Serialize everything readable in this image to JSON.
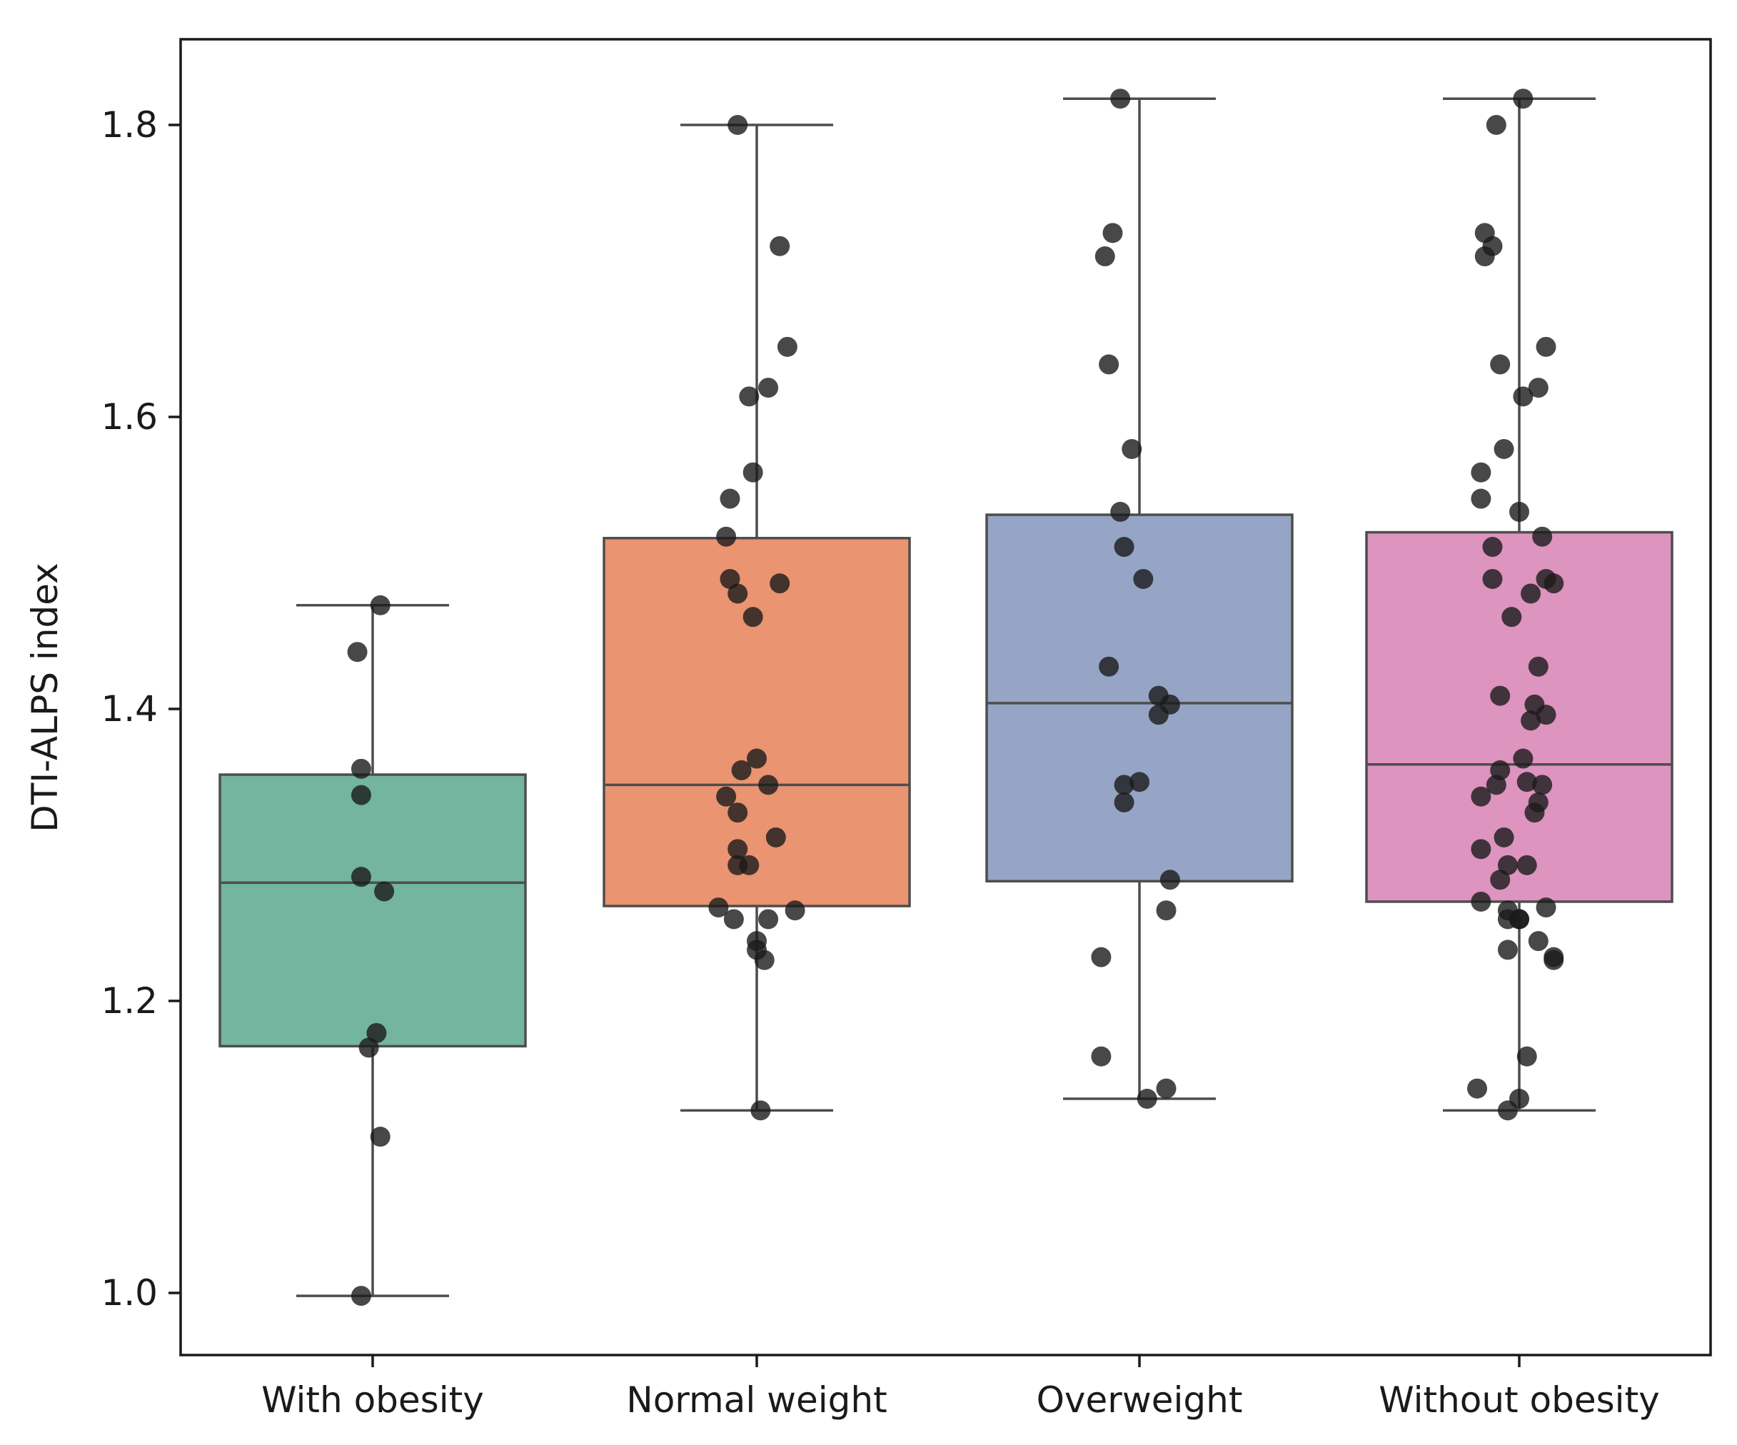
{
  "chart_data": {
    "type": "box",
    "title": "",
    "xlabel": "",
    "ylabel": "DTI-ALPS index",
    "ylim": [
      0.96,
      1.86
    ],
    "yticks": [
      "1.0",
      "1.2",
      "1.4",
      "1.6",
      "1.8"
    ],
    "categories": [
      "With obesity",
      "Normal weight",
      "Overweight",
      "Without obesity"
    ],
    "colors": [
      "#73b59f",
      "#ea9472",
      "#96a5c5",
      "#dd94bf"
    ],
    "boxes": [
      {
        "name": "With obesity",
        "whisker_low": 0.998,
        "q1": 1.169,
        "median": 1.281,
        "q3": 1.355,
        "whisker_high": 1.471
      },
      {
        "name": "Normal weight",
        "whisker_low": 1.125,
        "q1": 1.265,
        "median": 1.348,
        "q3": 1.517,
        "whisker_high": 1.8
      },
      {
        "name": "Overweight",
        "whisker_low": 1.133,
        "q1": 1.282,
        "median": 1.404,
        "q3": 1.533,
        "whisker_high": 1.818
      },
      {
        "name": "Without obesity",
        "whisker_low": 1.125,
        "q1": 1.268,
        "median": 1.362,
        "q3": 1.521,
        "whisker_high": 1.818
      }
    ],
    "points": [
      [
        [
          0.02,
          1.471
        ],
        [
          -0.04,
          1.439
        ],
        [
          -0.03,
          1.359
        ],
        [
          -0.03,
          1.341
        ],
        [
          -0.03,
          1.285
        ],
        [
          0.03,
          1.275
        ],
        [
          0.01,
          1.178
        ],
        [
          -0.01,
          1.168
        ],
        [
          0.02,
          1.107
        ],
        [
          -0.03,
          0.998
        ]
      ],
      [
        [
          -0.05,
          1.8
        ],
        [
          0.06,
          1.717
        ],
        [
          0.08,
          1.648
        ],
        [
          0.03,
          1.62
        ],
        [
          -0.02,
          1.614
        ],
        [
          -0.01,
          1.562
        ],
        [
          -0.07,
          1.544
        ],
        [
          -0.08,
          1.518
        ],
        [
          -0.07,
          1.489
        ],
        [
          0.06,
          1.486
        ],
        [
          -0.05,
          1.479
        ],
        [
          -0.01,
          1.463
        ],
        [
          -0.0,
          1.366
        ],
        [
          -0.04,
          1.358
        ],
        [
          0.03,
          1.348
        ],
        [
          -0.08,
          1.34
        ],
        [
          -0.05,
          1.329
        ],
        [
          0.05,
          1.312
        ],
        [
          -0.05,
          1.304
        ],
        [
          -0.05,
          1.293
        ],
        [
          -0.02,
          1.293
        ],
        [
          -0.1,
          1.264
        ],
        [
          0.1,
          1.262
        ],
        [
          -0.06,
          1.256
        ],
        [
          0.03,
          1.256
        ],
        [
          0.0,
          1.241
        ],
        [
          0.0,
          1.235
        ],
        [
          0.02,
          1.228
        ],
        [
          0.01,
          1.125
        ]
      ],
      [
        [
          -0.05,
          1.818
        ],
        [
          -0.07,
          1.726
        ],
        [
          -0.09,
          1.71
        ],
        [
          -0.08,
          1.636
        ],
        [
          -0.02,
          1.578
        ],
        [
          -0.05,
          1.535
        ],
        [
          -0.04,
          1.511
        ],
        [
          0.01,
          1.489
        ],
        [
          -0.08,
          1.429
        ],
        [
          0.05,
          1.409
        ],
        [
          0.08,
          1.403
        ],
        [
          0.05,
          1.396
        ],
        [
          0.0,
          1.35
        ],
        [
          -0.04,
          1.348
        ],
        [
          -0.04,
          1.336
        ],
        [
          0.08,
          1.283
        ],
        [
          0.07,
          1.262
        ],
        [
          -0.1,
          1.23
        ],
        [
          -0.1,
          1.162
        ],
        [
          0.07,
          1.14
        ],
        [
          0.02,
          1.133
        ]
      ],
      [
        [
          0.01,
          1.818
        ],
        [
          -0.06,
          1.8
        ],
        [
          -0.09,
          1.726
        ],
        [
          -0.07,
          1.717
        ],
        [
          -0.09,
          1.71
        ],
        [
          0.07,
          1.648
        ],
        [
          -0.05,
          1.636
        ],
        [
          0.05,
          1.62
        ],
        [
          0.01,
          1.614
        ],
        [
          -0.04,
          1.578
        ],
        [
          -0.1,
          1.562
        ],
        [
          -0.1,
          1.544
        ],
        [
          0.0,
          1.535
        ],
        [
          0.06,
          1.518
        ],
        [
          -0.07,
          1.511
        ],
        [
          0.07,
          1.489
        ],
        [
          -0.07,
          1.489
        ],
        [
          0.09,
          1.486
        ],
        [
          0.03,
          1.479
        ],
        [
          -0.02,
          1.463
        ],
        [
          0.05,
          1.429
        ],
        [
          -0.05,
          1.409
        ],
        [
          0.04,
          1.403
        ],
        [
          0.07,
          1.396
        ],
        [
          0.03,
          1.392
        ],
        [
          0.01,
          1.366
        ],
        [
          -0.05,
          1.358
        ],
        [
          0.02,
          1.35
        ],
        [
          -0.06,
          1.348
        ],
        [
          0.06,
          1.348
        ],
        [
          -0.1,
          1.34
        ],
        [
          0.05,
          1.336
        ],
        [
          0.04,
          1.329
        ],
        [
          -0.04,
          1.312
        ],
        [
          -0.1,
          1.304
        ],
        [
          -0.03,
          1.293
        ],
        [
          0.02,
          1.293
        ],
        [
          -0.05,
          1.283
        ],
        [
          -0.1,
          1.268
        ],
        [
          0.07,
          1.264
        ],
        [
          -0.03,
          1.262
        ],
        [
          -0.0,
          1.256
        ],
        [
          -0.03,
          1.256
        ],
        [
          0.0,
          1.256
        ],
        [
          0.05,
          1.241
        ],
        [
          -0.03,
          1.235
        ],
        [
          0.09,
          1.23
        ],
        [
          0.09,
          1.228
        ],
        [
          0.02,
          1.162
        ],
        [
          -0.11,
          1.14
        ],
        [
          0.0,
          1.133
        ],
        [
          -0.03,
          1.125
        ]
      ]
    ]
  }
}
